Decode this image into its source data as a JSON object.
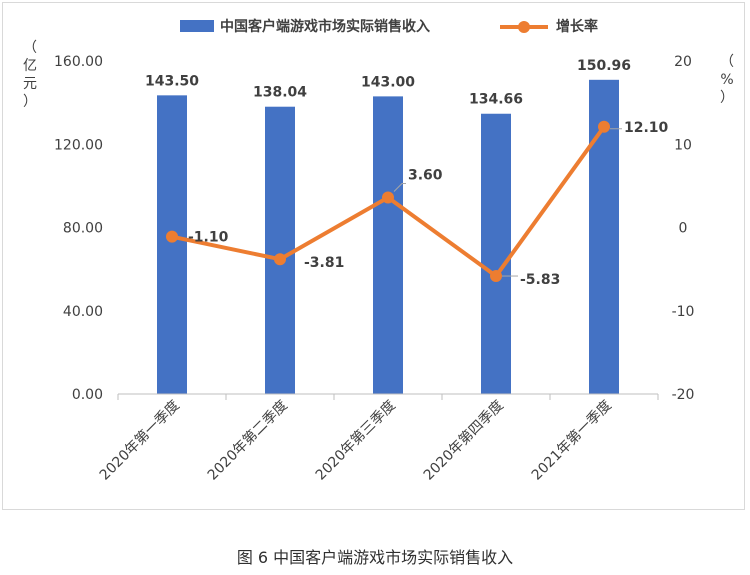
{
  "chart_data": {
    "type": "bar",
    "categories": [
      "2020年第一季度",
      "2020年第二季度",
      "2020年第三季度",
      "2020年第四季度",
      "2021年第一季度"
    ],
    "series": [
      {
        "name": "中国客户端游戏市场实际销售收入",
        "type": "bar",
        "axis": "left",
        "color": "#4472c4",
        "values": [
          143.5,
          138.04,
          143.0,
          134.66,
          150.96
        ],
        "labels": [
          "143.50",
          "138.04",
          "143.00",
          "134.66",
          "150.96"
        ]
      },
      {
        "name": "增长率",
        "type": "line",
        "axis": "right",
        "color": "#ed7d31",
        "values": [
          -1.1,
          -3.81,
          3.6,
          -5.83,
          12.1
        ],
        "labels": [
          "-1.10",
          "-3.81",
          "3.60",
          "-5.83",
          "12.10"
        ]
      }
    ],
    "ylabel_left": "（亿元）",
    "ylabel_right": "（%）",
    "ylim_left": [
      0,
      160
    ],
    "ylim_right": [
      -20,
      20
    ],
    "yticks_left": [
      "0.00",
      "40.00",
      "80.00",
      "120.00",
      "160.00"
    ],
    "yticks_right": [
      "-20",
      "-10",
      "0",
      "10",
      "20"
    ],
    "legend_position": "top",
    "grid": false
  },
  "caption": "图 6  中国客户端游戏市场实际销售收入"
}
